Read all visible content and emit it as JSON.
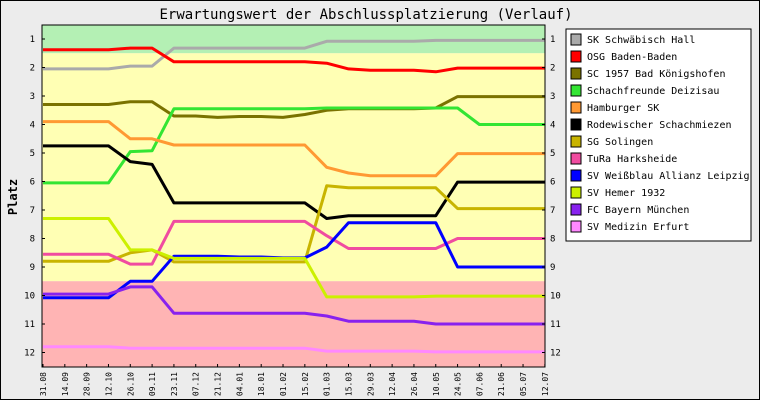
{
  "chart_data": {
    "type": "line",
    "title": "Erwartungswert der Abschlussplatzierung (Verlauf)",
    "ylabel": "Platz",
    "xlabel": "",
    "ylim": [
      1,
      12
    ],
    "y_inverted": true,
    "y_ticks": [
      1,
      2,
      3,
      4,
      5,
      6,
      7,
      8,
      9,
      10,
      11,
      12
    ],
    "grid": false,
    "legend_position": "right",
    "bands": [
      {
        "from": 1,
        "to": 1.5,
        "color": "#b4f0b4"
      },
      {
        "from": 1.5,
        "to": 9.5,
        "color": "#ffffb4"
      },
      {
        "from": 9.5,
        "to": 12,
        "color": "#ffb4b4"
      }
    ],
    "x": [
      "31.08",
      "14.09",
      "28.09",
      "12.10",
      "26.10",
      "09.11",
      "23.11",
      "07.12",
      "21.12",
      "04.01",
      "18.01",
      "01.02",
      "15.02",
      "01.03",
      "15.03",
      "29.03",
      "12.04",
      "26.04",
      "10.05",
      "24.05",
      "07.06",
      "21.06",
      "05.07",
      "12.07"
    ],
    "series": [
      {
        "name": "SK Schwäbisch Hall",
        "color": "#aaaaaa",
        "values": [
          2.05,
          2.05,
          2.05,
          2.05,
          1.95,
          1.95,
          1.32,
          1.32,
          1.32,
          1.32,
          1.32,
          1.32,
          1.32,
          1.08,
          1.08,
          1.08,
          1.08,
          1.08,
          1.05,
          1.05,
          1.05,
          1.05,
          1.05,
          1.05
        ]
      },
      {
        "name": "OSG Baden-Baden",
        "color": "#ff0000",
        "values": [
          1.38,
          1.38,
          1.38,
          1.38,
          1.32,
          1.32,
          1.8,
          1.8,
          1.8,
          1.8,
          1.8,
          1.8,
          1.8,
          1.85,
          2.05,
          2.1,
          2.1,
          2.1,
          2.15,
          2.02,
          2.02,
          2.02,
          2.02,
          2.02
        ]
      },
      {
        "name": "SC 1957 Bad Königshofen",
        "color": "#7a7200",
        "values": [
          3.3,
          3.3,
          3.3,
          3.3,
          3.2,
          3.2,
          3.7,
          3.7,
          3.75,
          3.72,
          3.72,
          3.75,
          3.65,
          3.5,
          3.45,
          3.45,
          3.45,
          3.45,
          3.42,
          3.02,
          3.02,
          3.02,
          3.02,
          3.02
        ]
      },
      {
        "name": "Schachfreunde Deizisau",
        "color": "#33e533",
        "values": [
          6.05,
          6.05,
          6.05,
          6.05,
          4.95,
          4.92,
          3.45,
          3.45,
          3.45,
          3.45,
          3.45,
          3.45,
          3.45,
          3.42,
          3.42,
          3.42,
          3.42,
          3.42,
          3.42,
          3.42,
          4.0,
          4.0,
          4.0,
          4.0
        ]
      },
      {
        "name": "Hamburger SK",
        "color": "#ff9933",
        "values": [
          3.9,
          3.9,
          3.9,
          3.9,
          4.5,
          4.5,
          4.72,
          4.72,
          4.72,
          4.72,
          4.72,
          4.72,
          4.72,
          5.5,
          5.7,
          5.8,
          5.8,
          5.8,
          5.8,
          5.02,
          5.02,
          5.02,
          5.02,
          5.02
        ]
      },
      {
        "name": "Rodewischer Schachmiezen",
        "color": "#000000",
        "values": [
          4.75,
          4.75,
          4.75,
          4.75,
          5.3,
          5.4,
          6.75,
          6.75,
          6.75,
          6.75,
          6.75,
          6.75,
          6.75,
          7.3,
          7.2,
          7.2,
          7.2,
          7.2,
          7.2,
          6.02,
          6.02,
          6.02,
          6.02,
          6.02
        ]
      },
      {
        "name": "SG Solingen",
        "color": "#c8b400",
        "values": [
          8.8,
          8.8,
          8.8,
          8.8,
          8.5,
          8.4,
          8.82,
          8.82,
          8.82,
          8.82,
          8.82,
          8.82,
          8.82,
          6.15,
          6.22,
          6.22,
          6.22,
          6.22,
          6.22,
          6.95,
          6.95,
          6.95,
          6.95,
          6.95
        ]
      },
      {
        "name": "TuRa Harksheide",
        "color": "#f04ca0",
        "values": [
          8.55,
          8.55,
          8.55,
          8.55,
          8.9,
          8.9,
          7.4,
          7.4,
          7.4,
          7.4,
          7.4,
          7.4,
          7.4,
          7.9,
          8.35,
          8.35,
          8.35,
          8.35,
          8.35,
          8.0,
          8.0,
          8.0,
          8.0,
          8.0
        ]
      },
      {
        "name": "SV Weißblau Allianz Leipzig",
        "color": "#0000ff",
        "values": [
          10.08,
          10.08,
          10.08,
          10.08,
          9.5,
          9.5,
          8.62,
          8.62,
          8.62,
          8.65,
          8.65,
          8.68,
          8.68,
          8.3,
          7.45,
          7.45,
          7.45,
          7.45,
          7.45,
          9.0,
          9.0,
          9.0,
          9.0,
          9.0
        ]
      },
      {
        "name": "SV Hemer 1932",
        "color": "#ccf000",
        "values": [
          7.3,
          7.3,
          7.3,
          7.3,
          8.4,
          8.4,
          8.7,
          8.7,
          8.7,
          8.7,
          8.7,
          8.7,
          8.7,
          10.05,
          10.05,
          10.05,
          10.05,
          10.05,
          10.02,
          10.02,
          10.02,
          10.02,
          10.02,
          10.02
        ]
      },
      {
        "name": "FC Bayern München",
        "color": "#8822ee",
        "values": [
          9.95,
          9.95,
          9.95,
          9.95,
          9.7,
          9.7,
          10.62,
          10.62,
          10.62,
          10.62,
          10.62,
          10.62,
          10.62,
          10.72,
          10.9,
          10.9,
          10.9,
          10.9,
          11.0,
          11.0,
          11.0,
          11.0,
          11.0,
          11.0
        ]
      },
      {
        "name": "SV Medizin Erfurt",
        "color": "#ff88ff",
        "values": [
          11.8,
          11.8,
          11.8,
          11.8,
          11.85,
          11.85,
          11.85,
          11.85,
          11.85,
          11.85,
          11.85,
          11.85,
          11.85,
          11.95,
          11.95,
          11.95,
          11.95,
          11.95,
          11.98,
          11.98,
          11.98,
          11.98,
          11.98,
          11.98
        ]
      }
    ]
  }
}
